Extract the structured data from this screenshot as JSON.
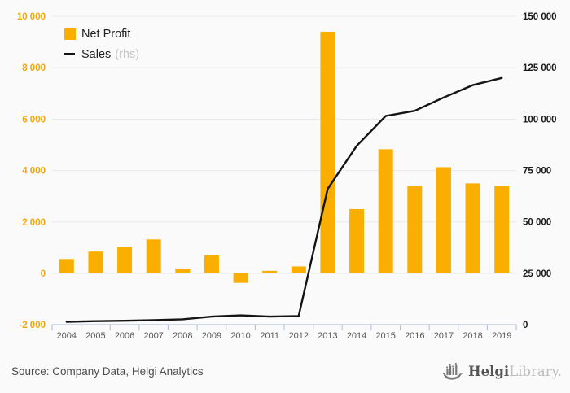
{
  "legend": {
    "net_profit_label": "Net Profit",
    "sales_label": "Sales",
    "sales_suffix": "(rhs)"
  },
  "footer": {
    "source": "Source: Company Data, Helgi Analytics",
    "logo_bold": "Helgi",
    "logo_light": "Library."
  },
  "colors": {
    "bar": "#FAAF00",
    "left_axis_label": "#F2A50C",
    "right_axis_label": "#1a1a1a",
    "line": "#141414",
    "gridline": "#e9e9e9",
    "axis": "#b9c6e0",
    "year_label": "#595959",
    "background": "#fafafa"
  },
  "chart_data": {
    "type": "bar+line",
    "categories": [
      "2004",
      "2005",
      "2006",
      "2007",
      "2008",
      "2009",
      "2010",
      "2011",
      "2012",
      "2013",
      "2014",
      "2015",
      "2016",
      "2017",
      "2018",
      "2019"
    ],
    "series": [
      {
        "name": "Net Profit",
        "type": "bar",
        "axis": "left",
        "values": [
          560,
          850,
          1030,
          1320,
          190,
          700,
          -370,
          100,
          270,
          9400,
          2500,
          4830,
          3400,
          4130,
          3500,
          3410
        ]
      },
      {
        "name": "Sales (rhs)",
        "type": "line",
        "axis": "right",
        "values": [
          1400,
          1700,
          1900,
          2200,
          2600,
          3900,
          4500,
          3900,
          4200,
          66000,
          87000,
          101500,
          104000,
          110500,
          116500,
          120000
        ]
      }
    ],
    "left_axis": {
      "range": [
        -2000,
        10000
      ],
      "tick_values": [
        10000,
        8000,
        6000,
        4000,
        2000,
        0,
        -2000
      ],
      "tick_labels": [
        "10 000",
        "8 000",
        "6 000",
        "4 000",
        "2 000",
        "0",
        "-2 000"
      ]
    },
    "right_axis": {
      "range": [
        0,
        150000
      ],
      "tick_values": [
        150000,
        125000,
        100000,
        75000,
        50000,
        25000,
        0
      ],
      "tick_labels": [
        "150 000",
        "125 000",
        "100 000",
        "75 000",
        "50 000",
        "25 000",
        "0"
      ]
    },
    "grid": "horizontal",
    "legend_position": "top-left"
  }
}
